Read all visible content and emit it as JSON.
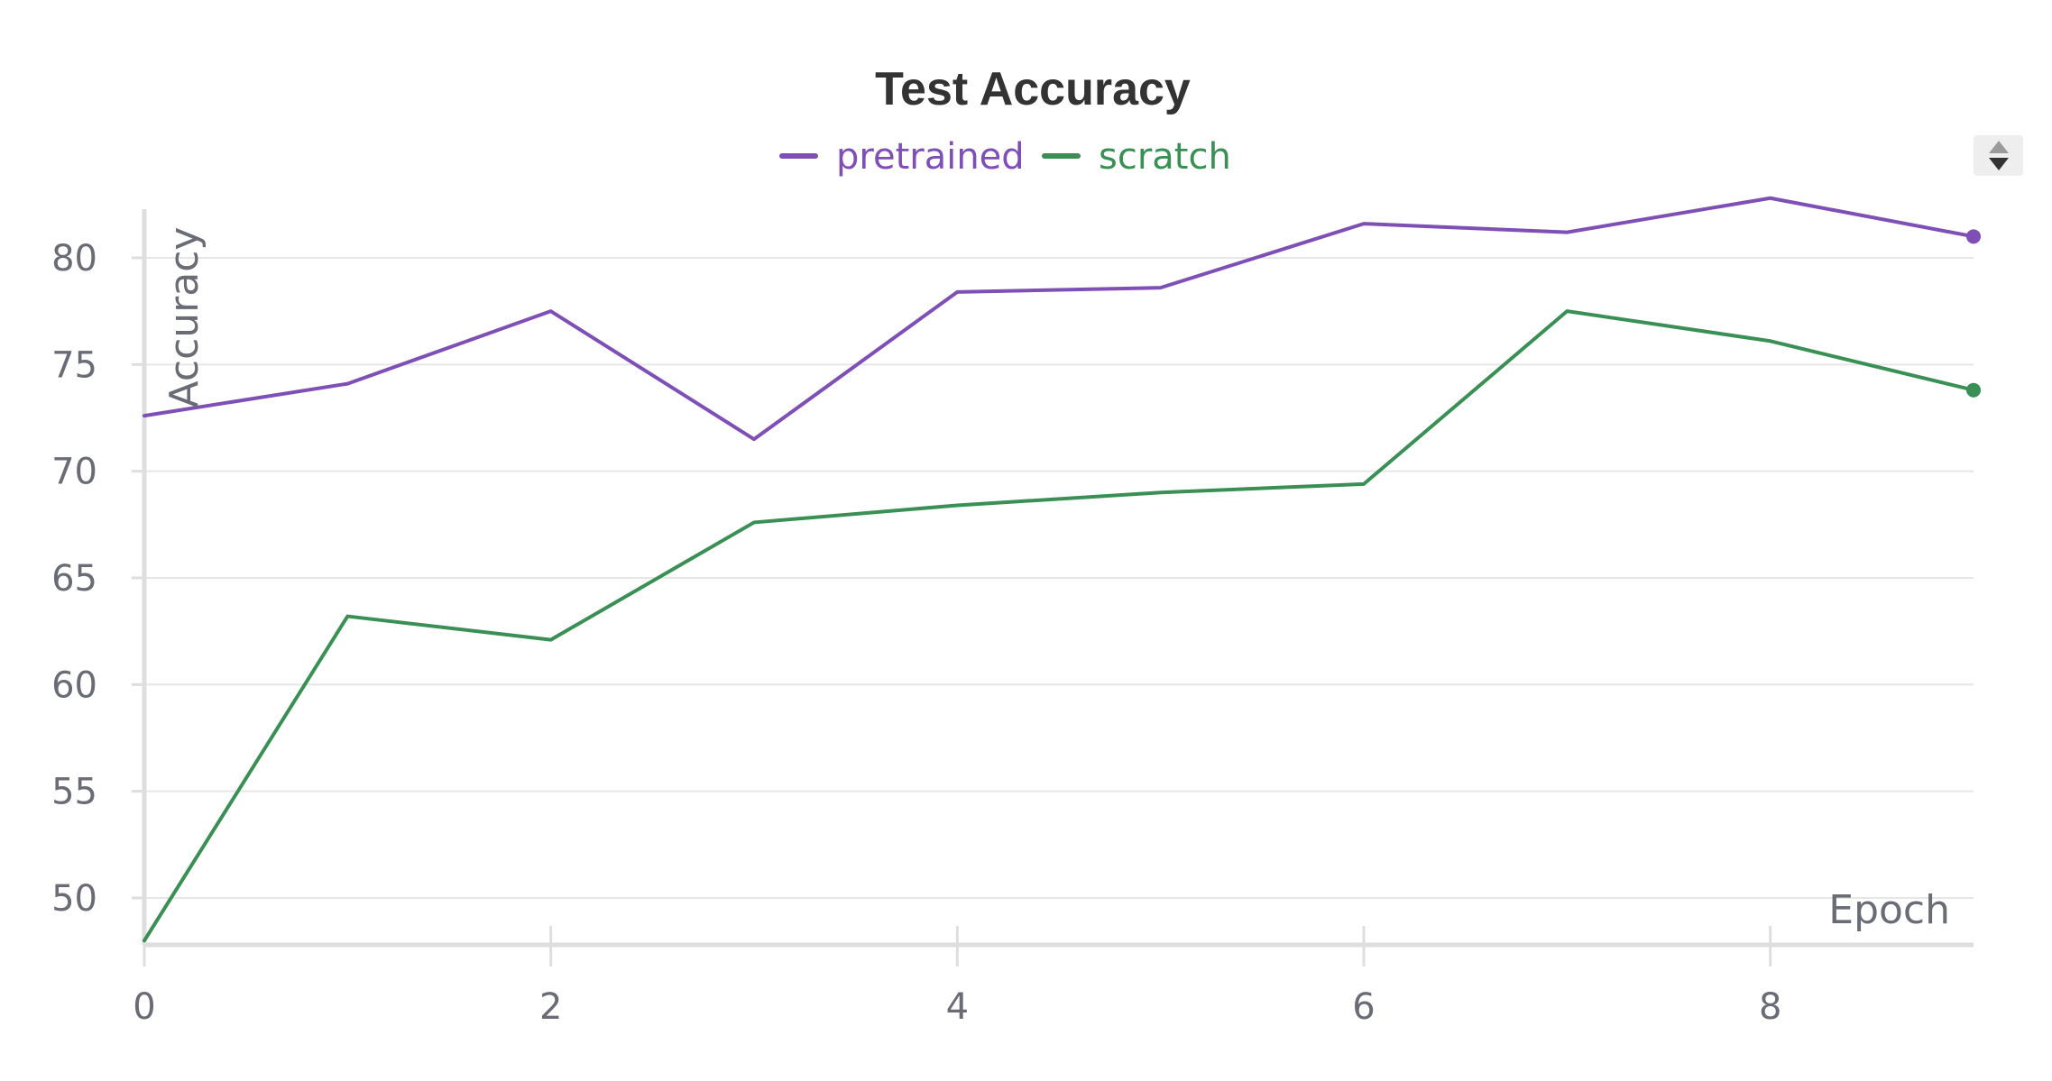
{
  "chart_data": {
    "type": "line",
    "title": "Test Accuracy",
    "xlabel": "Epoch",
    "ylabel": "Accuracy",
    "x": [
      0,
      1,
      2,
      3,
      4,
      5,
      6,
      7,
      8,
      9
    ],
    "xlim": [
      0,
      9
    ],
    "ylim": [
      47.8,
      83
    ],
    "xticks": [
      0,
      2,
      4,
      6,
      8
    ],
    "yticks": [
      50,
      55,
      60,
      65,
      70,
      75,
      80
    ],
    "grid": "horizontal",
    "legend_position": "top-center",
    "series": [
      {
        "name": "pretrained",
        "color": "#7e4fb5",
        "values": [
          72.6,
          74.1,
          77.5,
          71.5,
          78.4,
          78.6,
          81.6,
          81.2,
          82.8,
          81.0
        ]
      },
      {
        "name": "scratch",
        "color": "#3a8f55",
        "values": [
          48.0,
          63.2,
          62.1,
          67.6,
          68.4,
          69.0,
          69.4,
          77.5,
          76.1,
          73.8
        ]
      }
    ]
  },
  "controls": {
    "sort_toggle_icon": "sort-up-down-icon"
  }
}
